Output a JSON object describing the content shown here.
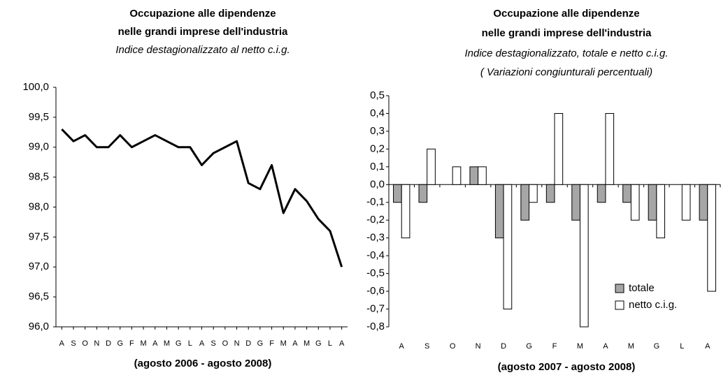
{
  "chart_data": [
    {
      "type": "line",
      "title": [
        "Occupazione alle dipendenze",
        "nelle grandi imprese dell'industria"
      ],
      "subtitle": [
        "Indice destagionalizzato al netto c.i.g."
      ],
      "xlabel": "(agosto 2006 - agosto 2008)",
      "categories": [
        "A",
        "S",
        "O",
        "N",
        "D",
        "G",
        "F",
        "M",
        "A",
        "M",
        "G",
        "L",
        "A",
        "S",
        "O",
        "N",
        "D",
        "G",
        "F",
        "M",
        "A",
        "M",
        "G",
        "L",
        "A"
      ],
      "values": [
        99.3,
        99.1,
        99.2,
        99.0,
        99.0,
        99.2,
        99.0,
        99.1,
        99.2,
        99.1,
        99.0,
        99.0,
        98.7,
        98.9,
        99.0,
        99.1,
        98.4,
        98.3,
        98.7,
        97.9,
        98.3,
        98.1,
        97.8,
        97.6,
        97.0
      ],
      "color": "#000000",
      "ylim": [
        96,
        100
      ],
      "yticks": [
        {
          "value": 100,
          "label": "100,0"
        },
        {
          "value": 99.5,
          "label": "99,5"
        },
        {
          "value": 99,
          "label": "99,0"
        },
        {
          "value": 98.5,
          "label": "98,5"
        },
        {
          "value": 98,
          "label": "98,0"
        },
        {
          "value": 97.5,
          "label": "97,5"
        },
        {
          "value": 97,
          "label": "97,0"
        },
        {
          "value": 96.5,
          "label": "96,5"
        },
        {
          "value": 96,
          "label": "96,0"
        }
      ]
    },
    {
      "type": "bar",
      "title": [
        "Occupazione alle dipendenze",
        "nelle grandi imprese dell'industria"
      ],
      "subtitle": [
        "Indice destagionalizzato, totale e netto c.i.g.",
        "( Variazioni congiunturali  percentuali)"
      ],
      "xlabel": "(agosto 2007 - agosto 2008)",
      "categories": [
        "A",
        "S",
        "O",
        "N",
        "D",
        "G",
        "F",
        "M",
        "A",
        "M",
        "G",
        "L",
        "A"
      ],
      "series": [
        {
          "name": "totale",
          "color": "#a6a6a6",
          "values": [
            -0.1,
            -0.1,
            0,
            0.1,
            -0.3,
            -0.2,
            -0.1,
            -0.2,
            -0.1,
            -0.1,
            -0.2,
            0,
            -0.2
          ]
        },
        {
          "name": "netto c.i.g.",
          "color": "#ffffff",
          "values": [
            -0.3,
            0.2,
            0.1,
            0.1,
            -0.7,
            -0.1,
            0.4,
            -0.8,
            0.4,
            -0.2,
            -0.3,
            -0.2,
            -0.6
          ]
        }
      ],
      "ylim": [
        -0.8,
        0.5
      ],
      "yticks": [
        {
          "value": 0.5,
          "label": "0,5"
        },
        {
          "value": 0.4,
          "label": "0,4"
        },
        {
          "value": 0.3,
          "label": "0,3"
        },
        {
          "value": 0.2,
          "label": "0,2"
        },
        {
          "value": 0.1,
          "label": "0,1"
        },
        {
          "value": 0,
          "label": "0,0"
        },
        {
          "value": -0.1,
          "label": "-0,1"
        },
        {
          "value": -0.2,
          "label": "-0,2"
        },
        {
          "value": -0.3,
          "label": "-0,3"
        },
        {
          "value": -0.4,
          "label": "-0,4"
        },
        {
          "value": -0.5,
          "label": "-0,5"
        },
        {
          "value": -0.6,
          "label": "-0,6"
        },
        {
          "value": -0.7,
          "label": "-0,7"
        },
        {
          "value": -0.8,
          "label": "-0,8"
        }
      ],
      "legend": "bottom-right"
    }
  ]
}
